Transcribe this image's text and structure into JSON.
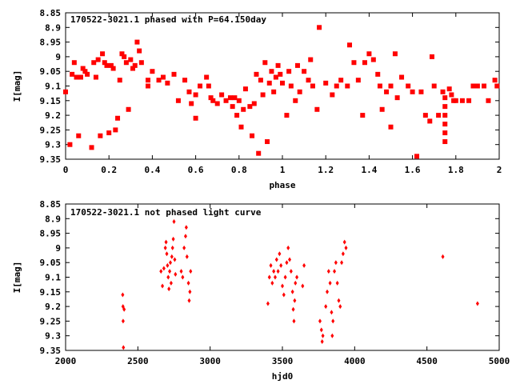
{
  "colors": {
    "points": "#ff0000",
    "frame": "#000000",
    "background": "#ffffff"
  },
  "chart_data": [
    {
      "type": "scatter",
      "title": "170522-3021.1 phased with P=64.150day",
      "xlabel": "phase",
      "ylabel": "I[mag]",
      "xlim": [
        0,
        2
      ],
      "ylim": [
        8.85,
        9.35
      ],
      "y_inverted": true,
      "grid": false,
      "x_ticks": [
        "0",
        "0.2",
        "0.4",
        "0.6",
        "0.8",
        "1",
        "1.2",
        "1.4",
        "1.6",
        "1.8",
        "2"
      ],
      "y_ticks": [
        "8.85",
        "8.9",
        "8.95",
        "9",
        "9.05",
        "9.1",
        "9.15",
        "9.2",
        "9.25",
        "9.3",
        "9.35"
      ],
      "marker": "filled-square",
      "points": [
        [
          0.0,
          9.12
        ],
        [
          0.02,
          9.3
        ],
        [
          0.03,
          9.06
        ],
        [
          0.04,
          9.02
        ],
        [
          0.05,
          9.07
        ],
        [
          0.06,
          9.27
        ],
        [
          0.07,
          9.07
        ],
        [
          0.08,
          9.04
        ],
        [
          0.09,
          9.05
        ],
        [
          0.1,
          9.06
        ],
        [
          0.12,
          9.31
        ],
        [
          0.13,
          9.02
        ],
        [
          0.14,
          9.07
        ],
        [
          0.15,
          9.01
        ],
        [
          0.16,
          9.27
        ],
        [
          0.17,
          8.99
        ],
        [
          0.18,
          9.02
        ],
        [
          0.19,
          9.03
        ],
        [
          0.2,
          9.26
        ],
        [
          0.21,
          9.03
        ],
        [
          0.22,
          9.04
        ],
        [
          0.23,
          9.25
        ],
        [
          0.24,
          9.21
        ],
        [
          0.25,
          9.08
        ],
        [
          0.26,
          8.99
        ],
        [
          0.27,
          9.0
        ],
        [
          0.28,
          9.02
        ],
        [
          0.29,
          9.18
        ],
        [
          0.3,
          9.01
        ],
        [
          0.31,
          9.04
        ],
        [
          0.32,
          9.03
        ],
        [
          0.33,
          8.95
        ],
        [
          0.34,
          8.98
        ],
        [
          0.35,
          9.02
        ],
        [
          0.38,
          9.08
        ],
        [
          0.38,
          9.1
        ],
        [
          0.4,
          9.05
        ],
        [
          0.43,
          9.08
        ],
        [
          0.45,
          9.07
        ],
        [
          0.47,
          9.09
        ],
        [
          0.5,
          9.06
        ],
        [
          0.52,
          9.15
        ],
        [
          0.55,
          9.08
        ],
        [
          0.57,
          9.12
        ],
        [
          0.58,
          9.16
        ],
        [
          0.6,
          9.21
        ],
        [
          0.6,
          9.13
        ],
        [
          0.62,
          9.1
        ],
        [
          0.65,
          9.07
        ],
        [
          0.66,
          9.1
        ],
        [
          0.67,
          9.14
        ],
        [
          0.68,
          9.15
        ],
        [
          0.7,
          9.16
        ],
        [
          0.72,
          9.13
        ],
        [
          0.74,
          9.15
        ],
        [
          0.76,
          9.14
        ],
        [
          0.77,
          9.17
        ],
        [
          0.78,
          9.14
        ],
        [
          0.79,
          9.2
        ],
        [
          0.8,
          9.15
        ],
        [
          0.81,
          9.24
        ],
        [
          0.82,
          9.18
        ],
        [
          0.83,
          9.11
        ],
        [
          0.85,
          9.17
        ],
        [
          0.86,
          9.27
        ],
        [
          0.87,
          9.16
        ],
        [
          0.88,
          9.06
        ],
        [
          0.89,
          9.33
        ],
        [
          0.9,
          9.08
        ],
        [
          0.91,
          9.13
        ],
        [
          0.92,
          9.02
        ],
        [
          0.93,
          9.29
        ],
        [
          0.94,
          9.09
        ],
        [
          0.95,
          9.05
        ],
        [
          0.96,
          9.12
        ],
        [
          0.97,
          9.07
        ],
        [
          0.98,
          9.03
        ],
        [
          0.99,
          9.06
        ],
        [
          1.0,
          9.09
        ],
        [
          1.02,
          9.2
        ],
        [
          1.03,
          9.05
        ],
        [
          1.04,
          9.1
        ],
        [
          1.06,
          9.15
        ],
        [
          1.07,
          9.03
        ],
        [
          1.08,
          9.12
        ],
        [
          1.1,
          9.05
        ],
        [
          1.12,
          9.08
        ],
        [
          1.13,
          9.01
        ],
        [
          1.14,
          9.1
        ],
        [
          1.16,
          9.18
        ],
        [
          1.17,
          8.9
        ],
        [
          1.2,
          9.09
        ],
        [
          1.23,
          9.13
        ],
        [
          1.25,
          9.1
        ],
        [
          1.27,
          9.08
        ],
        [
          1.3,
          9.1
        ],
        [
          1.31,
          8.96
        ],
        [
          1.33,
          9.02
        ],
        [
          1.35,
          9.08
        ],
        [
          1.37,
          9.2
        ],
        [
          1.38,
          9.02
        ],
        [
          1.4,
          8.99
        ],
        [
          1.42,
          9.01
        ],
        [
          1.44,
          9.06
        ],
        [
          1.45,
          9.1
        ],
        [
          1.46,
          9.18
        ],
        [
          1.48,
          9.12
        ],
        [
          1.5,
          9.24
        ],
        [
          1.5,
          9.1
        ],
        [
          1.52,
          8.99
        ],
        [
          1.53,
          9.14
        ],
        [
          1.55,
          9.07
        ],
        [
          1.58,
          9.1
        ],
        [
          1.6,
          9.12
        ],
        [
          1.62,
          9.34
        ],
        [
          1.64,
          9.12
        ],
        [
          1.66,
          9.2
        ],
        [
          1.68,
          9.22
        ],
        [
          1.69,
          9.0
        ],
        [
          1.7,
          9.1
        ],
        [
          1.72,
          9.2
        ],
        [
          1.74,
          9.12
        ],
        [
          1.75,
          9.14
        ],
        [
          1.75,
          9.17
        ],
        [
          1.75,
          9.2
        ],
        [
          1.75,
          9.23
        ],
        [
          1.75,
          9.26
        ],
        [
          1.75,
          9.29
        ],
        [
          1.77,
          9.11
        ],
        [
          1.78,
          9.13
        ],
        [
          1.79,
          9.15
        ],
        [
          1.8,
          9.15
        ],
        [
          1.83,
          9.15
        ],
        [
          1.86,
          9.15
        ],
        [
          1.88,
          9.1
        ],
        [
          1.9,
          9.1
        ],
        [
          1.93,
          9.1
        ],
        [
          1.95,
          9.15
        ],
        [
          1.98,
          9.08
        ],
        [
          1.99,
          9.1
        ]
      ]
    },
    {
      "type": "scatter",
      "title": "170522-3021.1 not phased light curve",
      "xlabel": "hjd0",
      "ylabel": "I[mag]",
      "xlim": [
        2000,
        5000
      ],
      "ylim": [
        8.85,
        9.35
      ],
      "y_inverted": true,
      "grid": false,
      "x_ticks": [
        "2000",
        "2500",
        "3000",
        "3500",
        "4000",
        "4500",
        "5000"
      ],
      "y_ticks": [
        "8.85",
        "8.9",
        "8.95",
        "9",
        "9.05",
        "9.1",
        "9.15",
        "9.2",
        "9.25",
        "9.3",
        "9.35"
      ],
      "marker": "small-diamond",
      "points": [
        [
          2395,
          9.16
        ],
        [
          2397,
          9.2
        ],
        [
          2398,
          9.25
        ],
        [
          2400,
          9.34
        ],
        [
          2405,
          9.21
        ],
        [
          2660,
          9.08
        ],
        [
          2670,
          9.13
        ],
        [
          2680,
          9.07
        ],
        [
          2690,
          9.0
        ],
        [
          2695,
          8.98
        ],
        [
          2700,
          9.02
        ],
        [
          2705,
          9.06
        ],
        [
          2710,
          9.1
        ],
        [
          2715,
          9.14
        ],
        [
          2720,
          9.08
        ],
        [
          2725,
          9.05
        ],
        [
          2730,
          9.12
        ],
        [
          2735,
          9.03
        ],
        [
          2740,
          9.0
        ],
        [
          2745,
          8.97
        ],
        [
          2750,
          8.91
        ],
        [
          2755,
          9.04
        ],
        [
          2760,
          9.09
        ],
        [
          2800,
          9.08
        ],
        [
          2810,
          9.1
        ],
        [
          2820,
          9.0
        ],
        [
          2830,
          8.96
        ],
        [
          2835,
          8.93
        ],
        [
          2840,
          9.03
        ],
        [
          2850,
          9.12
        ],
        [
          2855,
          9.18
        ],
        [
          2860,
          9.15
        ],
        [
          2865,
          9.08
        ],
        [
          3400,
          9.19
        ],
        [
          3410,
          9.1
        ],
        [
          3420,
          9.06
        ],
        [
          3430,
          9.12
        ],
        [
          3440,
          9.08
        ],
        [
          3450,
          9.1
        ],
        [
          3460,
          9.04
        ],
        [
          3470,
          9.08
        ],
        [
          3480,
          9.02
        ],
        [
          3490,
          9.06
        ],
        [
          3500,
          9.13
        ],
        [
          3510,
          9.16
        ],
        [
          3520,
          9.1
        ],
        [
          3530,
          9.05
        ],
        [
          3540,
          9.0
        ],
        [
          3550,
          9.04
        ],
        [
          3560,
          9.08
        ],
        [
          3570,
          9.15
        ],
        [
          3575,
          9.21
        ],
        [
          3580,
          9.25
        ],
        [
          3585,
          9.18
        ],
        [
          3590,
          9.12
        ],
        [
          3600,
          9.1
        ],
        [
          3640,
          9.13
        ],
        [
          3650,
          9.06
        ],
        [
          3760,
          9.25
        ],
        [
          3770,
          9.28
        ],
        [
          3775,
          9.32
        ],
        [
          3780,
          9.3
        ],
        [
          3800,
          9.2
        ],
        [
          3810,
          9.15
        ],
        [
          3820,
          9.08
        ],
        [
          3830,
          9.12
        ],
        [
          3840,
          9.22
        ],
        [
          3845,
          9.3
        ],
        [
          3850,
          9.25
        ],
        [
          3860,
          9.08
        ],
        [
          3870,
          9.05
        ],
        [
          3880,
          9.12
        ],
        [
          3890,
          9.18
        ],
        [
          3900,
          9.2
        ],
        [
          3910,
          9.05
        ],
        [
          3920,
          9.02
        ],
        [
          3930,
          8.98
        ],
        [
          3940,
          9.0
        ],
        [
          4610,
          9.03
        ],
        [
          4850,
          9.19
        ]
      ]
    }
  ]
}
